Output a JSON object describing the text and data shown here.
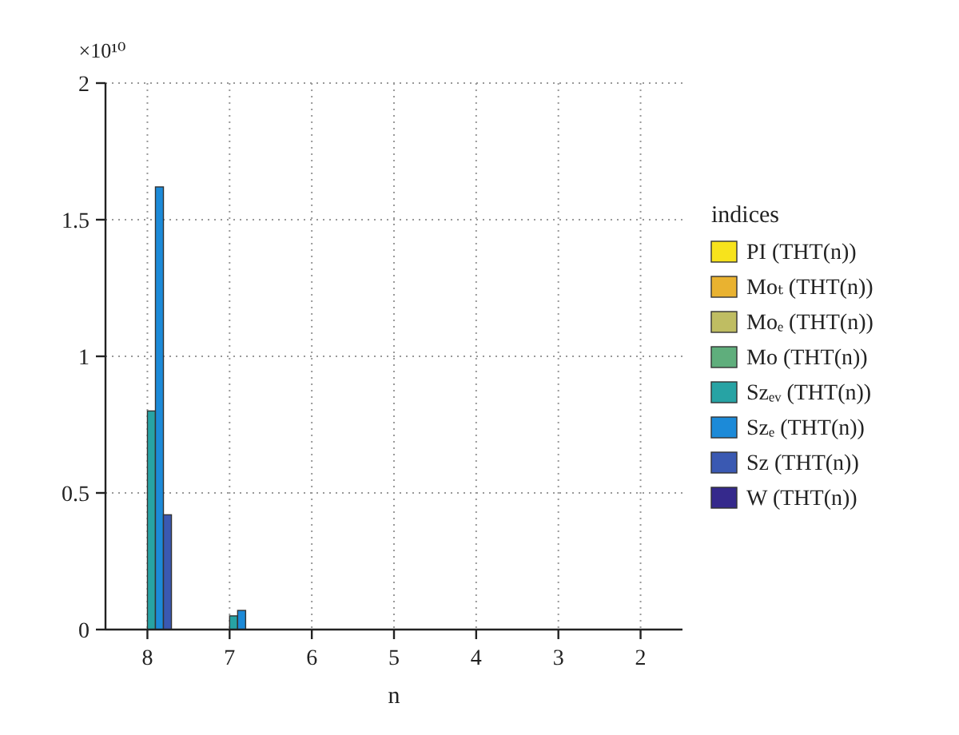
{
  "chart_data": {
    "type": "bar",
    "xlabel": "n",
    "legend_title": "indices",
    "categories": [
      "8",
      "7",
      "6",
      "5",
      "4",
      "3",
      "2"
    ],
    "series": [
      {
        "name": "PI (THT(n))",
        "color": "#f7e31c",
        "values": [
          0,
          0,
          0,
          0,
          0,
          0,
          0
        ]
      },
      {
        "name": "Moₜ (THT(n))",
        "color": "#e9b230",
        "values": [
          0,
          0,
          0,
          0,
          0,
          0,
          0
        ]
      },
      {
        "name": "Moₑ (THT(n))",
        "color": "#bfbd62",
        "values": [
          0,
          0,
          0,
          0,
          0,
          0,
          0
        ]
      },
      {
        "name": "Mo (THT(n))",
        "color": "#5fae7c",
        "values": [
          0,
          0,
          0,
          0,
          0,
          0,
          0
        ]
      },
      {
        "name": "Szₑᵥ (THT(n))",
        "color": "#27a3a4",
        "values": [
          0.8,
          0.05,
          0,
          0,
          0,
          0,
          0
        ]
      },
      {
        "name": "Szₑ (THT(n))",
        "color": "#1c8ad8",
        "values": [
          1.62,
          0.07,
          0,
          0,
          0,
          0,
          0
        ]
      },
      {
        "name": "Sz (THT(n))",
        "color": "#3a59b2",
        "values": [
          0.42,
          0,
          0,
          0,
          0,
          0,
          0
        ]
      },
      {
        "name": "W (THT(n))",
        "color": "#35298c",
        "values": [
          0,
          0,
          0,
          0,
          0,
          0,
          0
        ]
      }
    ],
    "ylim": [
      0,
      2
    ],
    "yticks": [
      0,
      0.5,
      1,
      1.5,
      2
    ],
    "grid": true,
    "legend": "right",
    "annotations": [
      "×10¹⁰"
    ]
  }
}
